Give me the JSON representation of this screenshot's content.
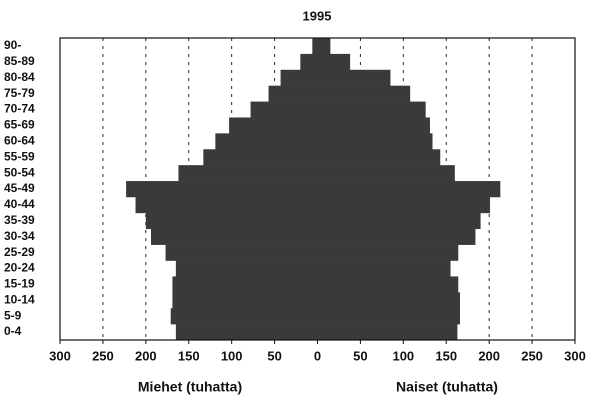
{
  "chart_data": {
    "type": "pyramid",
    "title": "1995",
    "categories": [
      "0-4",
      "5-9",
      "10-14",
      "15-19",
      "20-24",
      "25-29",
      "30-34",
      "35-39",
      "40-44",
      "45-49",
      "50-54",
      "55-59",
      "60-64",
      "65-69",
      "70-74",
      "75-79",
      "80-84",
      "85-89",
      "90-"
    ],
    "series": [
      {
        "name": "Miehet (tuhatta)",
        "side": "left",
        "color": "#3a3a3a",
        "values": [
          165,
          171,
          169,
          169,
          165,
          177,
          194,
          200,
          212,
          223,
          162,
          133,
          119,
          103,
          78,
          57,
          43,
          20,
          6
        ]
      },
      {
        "name": "Naiset (tuhatta)",
        "side": "right",
        "color": "#3a3a3a",
        "values": [
          163,
          166,
          166,
          164,
          155,
          164,
          184,
          190,
          201,
          213,
          160,
          143,
          134,
          131,
          126,
          108,
          85,
          38,
          15
        ]
      }
    ],
    "xlim": [
      -300,
      300
    ],
    "xticks": [
      {
        "value": -300,
        "label": "300"
      },
      {
        "value": -250,
        "label": "250"
      },
      {
        "value": -200,
        "label": "200"
      },
      {
        "value": -150,
        "label": "150"
      },
      {
        "value": -100,
        "label": "100"
      },
      {
        "value": -50,
        "label": "50"
      },
      0,
      50,
      100,
      150,
      200,
      250,
      300
    ],
    "grid": true
  }
}
